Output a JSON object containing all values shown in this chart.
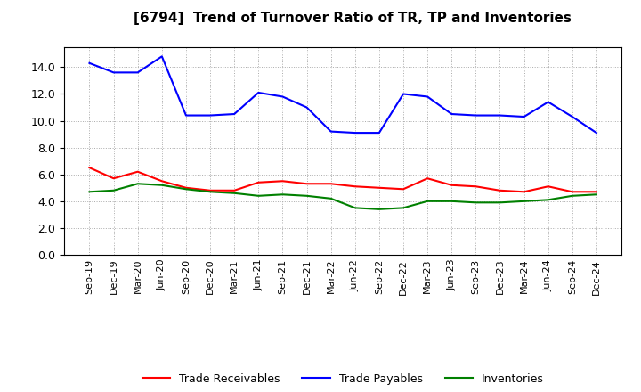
{
  "title": "[6794]  Trend of Turnover Ratio of TR, TP and Inventories",
  "x_labels": [
    "Sep-19",
    "Dec-19",
    "Mar-20",
    "Jun-20",
    "Sep-20",
    "Dec-20",
    "Mar-21",
    "Jun-21",
    "Sep-21",
    "Dec-21",
    "Mar-22",
    "Jun-22",
    "Sep-22",
    "Dec-22",
    "Mar-23",
    "Jun-23",
    "Sep-23",
    "Dec-23",
    "Mar-24",
    "Jun-24",
    "Sep-24",
    "Dec-24"
  ],
  "trade_receivables": [
    6.5,
    5.7,
    6.2,
    5.5,
    5.0,
    4.8,
    4.8,
    5.4,
    5.5,
    5.3,
    5.3,
    5.1,
    5.0,
    4.9,
    5.7,
    5.2,
    5.1,
    4.8,
    4.7,
    5.1,
    4.7,
    4.7
  ],
  "trade_payables": [
    14.3,
    13.6,
    13.6,
    14.8,
    10.4,
    10.4,
    10.5,
    12.1,
    11.8,
    11.0,
    9.2,
    9.1,
    9.1,
    12.0,
    11.8,
    10.5,
    10.4,
    10.4,
    10.3,
    11.4,
    10.3,
    9.1
  ],
  "inventories": [
    4.7,
    4.8,
    5.3,
    5.2,
    4.9,
    4.7,
    4.6,
    4.4,
    4.5,
    4.4,
    4.2,
    3.5,
    3.4,
    3.5,
    4.0,
    4.0,
    3.9,
    3.9,
    4.0,
    4.1,
    4.4,
    4.5
  ],
  "ylim": [
    0.0,
    15.5
  ],
  "yticks": [
    0.0,
    2.0,
    4.0,
    6.0,
    8.0,
    10.0,
    12.0,
    14.0
  ],
  "line_color_tr": "#ff0000",
  "line_color_tp": "#0000ff",
  "line_color_inv": "#008000",
  "background_color": "#ffffff",
  "plot_bg_color": "#ffffff",
  "grid_color": "#aaaaaa",
  "legend_labels": [
    "Trade Receivables",
    "Trade Payables",
    "Inventories"
  ]
}
